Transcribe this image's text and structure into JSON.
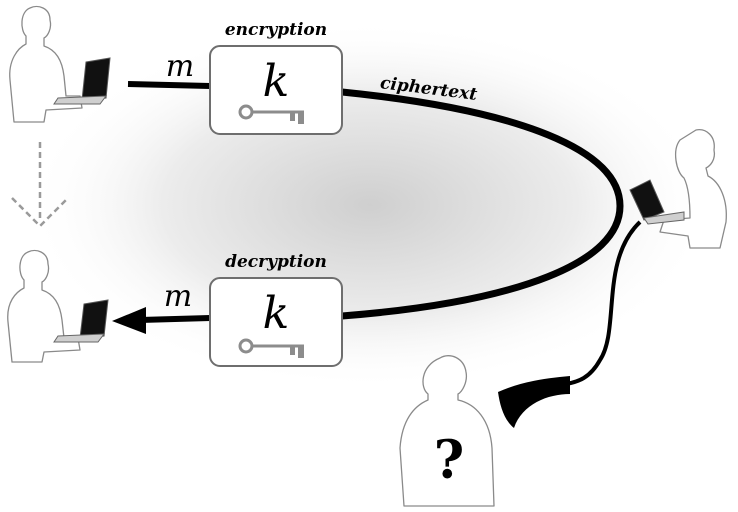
{
  "encryption": {
    "label": "encryption",
    "key_letter": "k",
    "input_message": "m"
  },
  "decryption": {
    "label": "decryption",
    "key_letter": "k",
    "output_message": "m"
  },
  "channel": {
    "label": "ciphertext"
  },
  "eavesdropper": {
    "symbol": "?"
  },
  "icons": [
    "person-icon",
    "laptop-icon",
    "key-icon",
    "horn-icon",
    "arrow-down-icon"
  ],
  "colors": {
    "line": "#000000",
    "box_border": "#6e6e6e",
    "key": "#8c8c8c",
    "glow": "#cfcfcf"
  }
}
